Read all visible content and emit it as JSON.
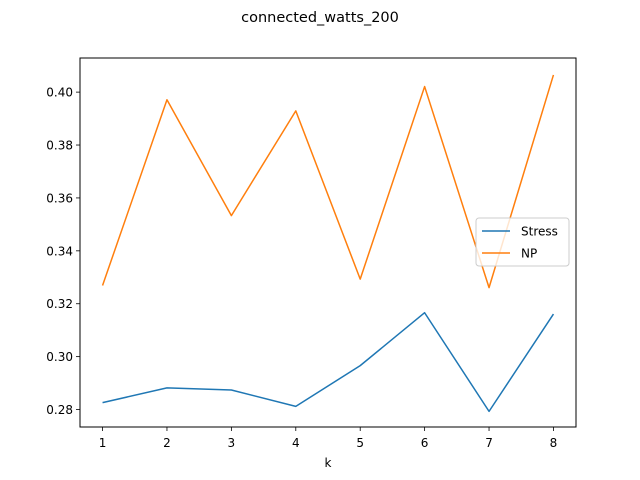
{
  "chart_data": {
    "type": "line",
    "title": "connected_watts_200",
    "xlabel": "k",
    "ylabel": "",
    "x": [
      1,
      2,
      3,
      4,
      5,
      6,
      7,
      8
    ],
    "xticks": [
      "1",
      "2",
      "3",
      "4",
      "5",
      "6",
      "7",
      "8"
    ],
    "xlim": [
      0.65,
      8.35
    ],
    "yticks": [
      "0.28",
      "0.30",
      "0.32",
      "0.34",
      "0.36",
      "0.38",
      "0.40"
    ],
    "ylim": [
      0.2734,
      0.4129
    ],
    "grid": false,
    "legend_position": "center-right",
    "series": [
      {
        "name": "Stress",
        "color": "#1f77b4",
        "values": [
          0.2826,
          0.2882,
          0.2874,
          0.2812,
          0.2966,
          0.3166,
          0.2793,
          0.3161
        ]
      },
      {
        "name": "NP",
        "color": "#ff7f0e",
        "values": [
          0.3269,
          0.3971,
          0.3533,
          0.3929,
          0.3293,
          0.4021,
          0.3261,
          0.4065
        ]
      }
    ]
  }
}
